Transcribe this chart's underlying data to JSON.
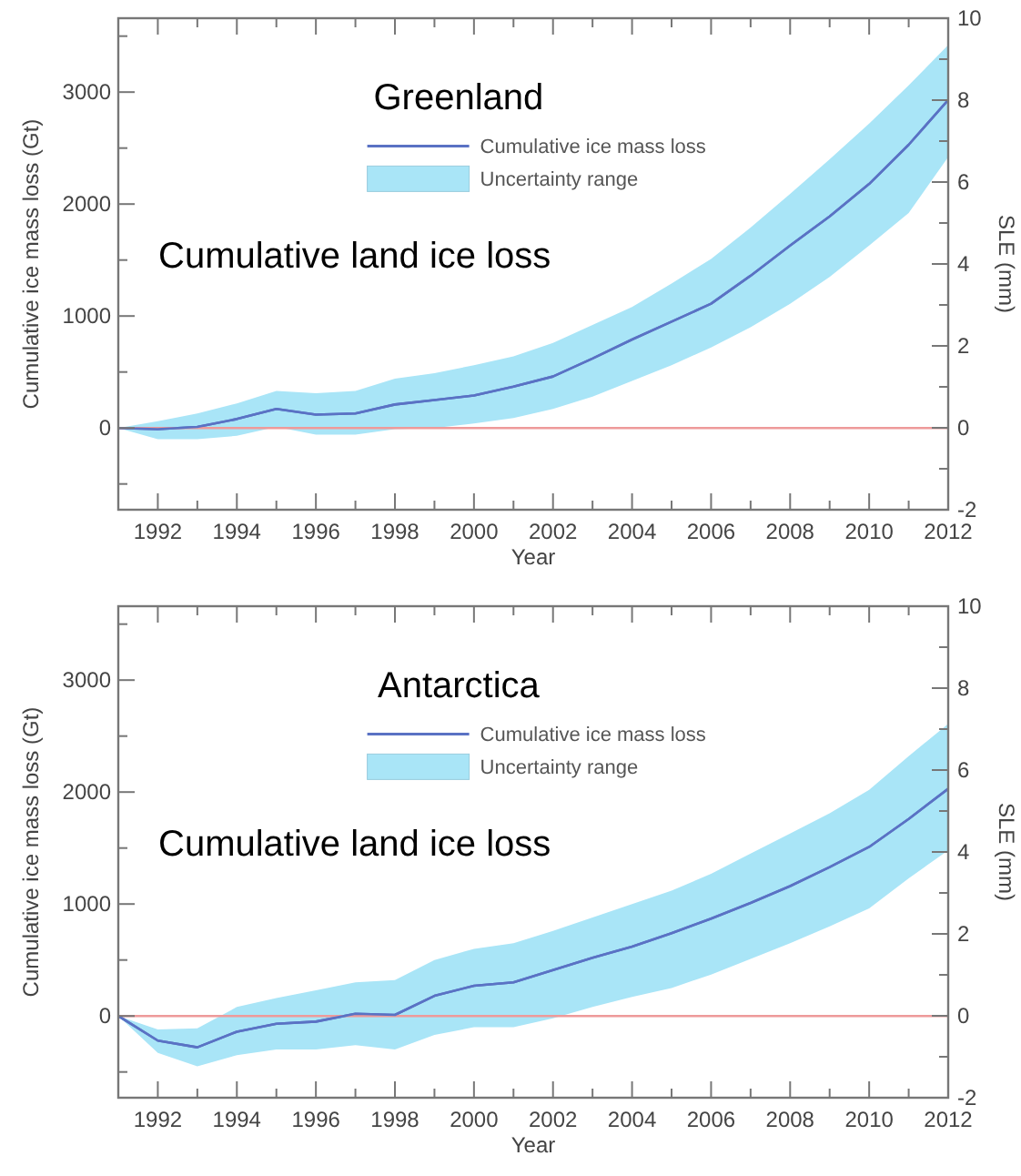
{
  "chart_data": [
    {
      "type": "line",
      "title": "Greenland",
      "annotations": [
        "Uncertainty range",
        "Cumulative land ice loss"
      ],
      "xlabel": "Year",
      "ylabel": "Cumulative ice mass loss (Gt)",
      "y2label": "SLE (mm)",
      "x": [
        1991,
        1992,
        1993,
        1994,
        1995,
        1996,
        1997,
        1998,
        1999,
        2000,
        2001,
        2002,
        2003,
        2004,
        2005,
        2006,
        2007,
        2008,
        2009,
        2010,
        2011,
        2012
      ],
      "series": [
        {
          "name": "Cumulative ice mass loss",
          "color": "#5a72c4",
          "values": [
            0,
            -10,
            10,
            80,
            170,
            120,
            130,
            210,
            250,
            290,
            370,
            460,
            620,
            790,
            950,
            1110,
            1360,
            1630,
            1890,
            2180,
            2530,
            2930
          ],
          "lower": [
            0,
            -100,
            -100,
            -70,
            10,
            -60,
            -60,
            -10,
            0,
            40,
            90,
            170,
            280,
            420,
            560,
            720,
            900,
            1110,
            1350,
            1630,
            1920,
            2420
          ],
          "upper": [
            0,
            60,
            130,
            220,
            330,
            310,
            330,
            440,
            490,
            560,
            640,
            760,
            920,
            1080,
            1290,
            1510,
            1790,
            2090,
            2400,
            2720,
            3060,
            3420
          ]
        }
      ],
      "xlim": [
        1991,
        2012
      ],
      "xticks": [
        {
          "value": 1991,
          "label": null
        },
        1992,
        {
          "value": 1993,
          "label": null
        },
        1994,
        {
          "value": 1995,
          "label": null
        },
        1996,
        {
          "value": 1997,
          "label": null
        },
        1998,
        {
          "value": 1999,
          "label": null
        },
        2000,
        {
          "value": 2001,
          "label": null
        },
        2002,
        {
          "value": 2003,
          "label": null
        },
        2004,
        {
          "value": 2005,
          "label": null
        },
        2006,
        {
          "value": 2007,
          "label": null
        },
        2008,
        {
          "value": 2009,
          "label": null
        },
        2010,
        {
          "value": 2011,
          "label": null
        },
        2012
      ],
      "ylim": [
        -730,
        3660
      ],
      "yticks": [
        {
          "value": -500,
          "label": null
        },
        0,
        {
          "value": 500,
          "label": null
        },
        1000,
        {
          "value": 1500,
          "label": null
        },
        2000,
        {
          "value": 2500,
          "label": null
        },
        3000,
        {
          "value": 3500,
          "label": null
        }
      ],
      "y2lim": [
        -2,
        10
      ],
      "y2ticks": [
        -2,
        {
          "value": -1,
          "label": null
        },
        0,
        {
          "value": 1,
          "label": null
        },
        2,
        {
          "value": 3,
          "label": null
        },
        4,
        {
          "value": 5,
          "label": null
        },
        6,
        {
          "value": 7,
          "label": null
        },
        8,
        {
          "value": 9,
          "label": null
        },
        10
      ],
      "ref_lines": [
        {
          "axis": "y",
          "value": 0,
          "color": "#ee9a9a"
        }
      ],
      "legend": "top",
      "marker": "none",
      "line_style": "solid"
    },
    {
      "type": "line",
      "title": "Antarctica",
      "annotations": [
        "Uncertainty range",
        "Cumulative land ice loss"
      ],
      "xlabel": "Year",
      "ylabel": "Cumulative ice mass loss (Gt)",
      "y2label": "SLE (mm)",
      "x": [
        1991,
        1992,
        1993,
        1994,
        1995,
        1996,
        1997,
        1998,
        1999,
        2000,
        2001,
        2002,
        2003,
        2004,
        2005,
        2006,
        2007,
        2008,
        2009,
        2010,
        2011,
        2012
      ],
      "series": [
        {
          "name": "Cumulative ice mass loss",
          "color": "#5a72c4",
          "values": [
            0,
            -220,
            -280,
            -140,
            -70,
            -50,
            20,
            10,
            180,
            270,
            300,
            410,
            520,
            620,
            740,
            870,
            1010,
            1160,
            1330,
            1510,
            1760,
            2030
          ],
          "lower": [
            0,
            -330,
            -450,
            -350,
            -300,
            -300,
            -260,
            -300,
            -170,
            -100,
            -100,
            -20,
            80,
            170,
            250,
            370,
            510,
            650,
            800,
            960,
            1230,
            1480
          ],
          "upper": [
            0,
            -120,
            -110,
            80,
            160,
            230,
            300,
            320,
            500,
            600,
            650,
            760,
            880,
            1000,
            1120,
            1270,
            1450,
            1630,
            1810,
            2020,
            2320,
            2610
          ]
        }
      ],
      "xlim": [
        1991,
        2012
      ],
      "xticks": [
        {
          "value": 1991,
          "label": null
        },
        1992,
        {
          "value": 1993,
          "label": null
        },
        1994,
        {
          "value": 1995,
          "label": null
        },
        1996,
        {
          "value": 1997,
          "label": null
        },
        1998,
        {
          "value": 1999,
          "label": null
        },
        2000,
        {
          "value": 2001,
          "label": null
        },
        2002,
        {
          "value": 2003,
          "label": null
        },
        2004,
        {
          "value": 2005,
          "label": null
        },
        2006,
        {
          "value": 2007,
          "label": null
        },
        2008,
        {
          "value": 2009,
          "label": null
        },
        2010,
        {
          "value": 2011,
          "label": null
        },
        2012
      ],
      "ylim": [
        -730,
        3660
      ],
      "yticks": [
        {
          "value": -500,
          "label": null
        },
        0,
        {
          "value": 500,
          "label": null
        },
        1000,
        {
          "value": 1500,
          "label": null
        },
        2000,
        {
          "value": 2500,
          "label": null
        },
        3000,
        {
          "value": 3500,
          "label": null
        }
      ],
      "y2lim": [
        -2,
        10
      ],
      "y2ticks": [
        -2,
        {
          "value": -1,
          "label": null
        },
        0,
        {
          "value": 1,
          "label": null
        },
        2,
        {
          "value": 3,
          "label": null
        },
        4,
        {
          "value": 5,
          "label": null
        },
        6,
        {
          "value": 7,
          "label": null
        },
        8,
        {
          "value": 9,
          "label": null
        },
        10
      ],
      "ref_lines": [
        {
          "axis": "y",
          "value": 0,
          "color": "#ee9a9a"
        }
      ],
      "legend": "top",
      "marker": "none",
      "line_style": "solid"
    }
  ]
}
